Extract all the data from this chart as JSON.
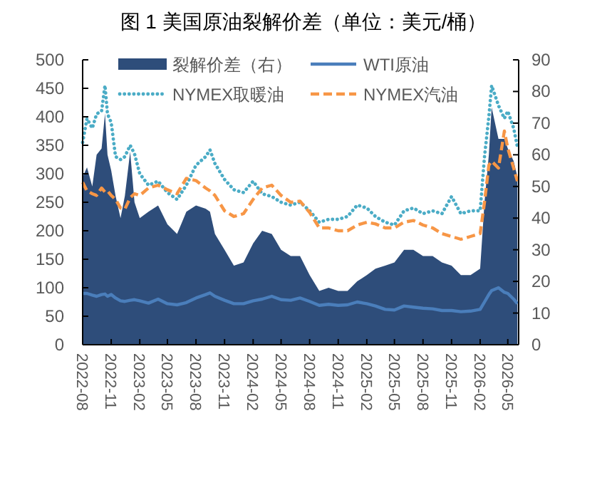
{
  "chart_data": {
    "type": "line",
    "title": "图 1 美国原油裂解价差（单位：美元/桶）",
    "legend": "top",
    "x": [
      "2022-08-01",
      "2022-08-15",
      "2022-09-01",
      "2022-09-15",
      "2022-10-01",
      "2022-10-12",
      "2022-10-20",
      "2022-11-01",
      "2022-11-15",
      "2022-12-01",
      "2022-12-15",
      "2023-01-01",
      "2023-01-15",
      "2023-02-01",
      "2023-03-01",
      "2023-04-01",
      "2023-05-01",
      "2023-06-01",
      "2023-07-01",
      "2023-08-01",
      "2023-09-01",
      "2023-09-15",
      "2023-10-01",
      "2023-11-01",
      "2023-12-01",
      "2024-01-01",
      "2024-02-01",
      "2024-03-01",
      "2024-04-01",
      "2024-05-01",
      "2024-06-01",
      "2024-07-01",
      "2024-08-01",
      "2024-09-01",
      "2024-10-01",
      "2024-11-01",
      "2024-12-01",
      "2025-01-01",
      "2025-02-01",
      "2025-03-01",
      "2025-04-01",
      "2025-05-01",
      "2025-06-01",
      "2025-07-01",
      "2025-08-01",
      "2025-09-01",
      "2025-10-01",
      "2025-11-01",
      "2025-12-01",
      "2026-01-01",
      "2026-02-01",
      "2026-02-15",
      "2026-03-01",
      "2026-03-10",
      "2026-04-01",
      "2026-04-20",
      "2026-05-01",
      "2026-05-20",
      "2026-06-01"
    ],
    "series": [
      {
        "name": "裂解价差（右）",
        "type": "area",
        "axis": "y2",
        "color": "#2e4d7a",
        "values": [
          53,
          56,
          50,
          60,
          62,
          73,
          60,
          55,
          47,
          40,
          47,
          61,
          45,
          40,
          42,
          44,
          38,
          35,
          42,
          44,
          43,
          42,
          35,
          30,
          25,
          26,
          32,
          36,
          35,
          30,
          28,
          28,
          22,
          17,
          18,
          17,
          17,
          20,
          22,
          24,
          25,
          26,
          30,
          30,
          28,
          28,
          26,
          25,
          22,
          22,
          24,
          45,
          60,
          75,
          65,
          65,
          62,
          58,
          53
        ]
      },
      {
        "name": "WTI原油",
        "line_style": "solid",
        "color": "#4a7ebb",
        "values": [
          90,
          90,
          87,
          85,
          88,
          89,
          85,
          88,
          82,
          77,
          76,
          78,
          79,
          77,
          73,
          80,
          72,
          70,
          74,
          82,
          88,
          91,
          85,
          78,
          72,
          72,
          77,
          80,
          85,
          79,
          78,
          82,
          76,
          69,
          71,
          69,
          70,
          75,
          72,
          68,
          62,
          61,
          68,
          66,
          64,
          63,
          60,
          60,
          58,
          59,
          62,
          75,
          88,
          95,
          100,
          92,
          90,
          80,
          72
        ]
      },
      {
        "name": "NYMEX取暖油",
        "line_style": "dotted",
        "color": "#4bacc6",
        "values": [
          355,
          397,
          380,
          405,
          410,
          455,
          405,
          390,
          330,
          325,
          330,
          350,
          335,
          300,
          280,
          287,
          267,
          255,
          280,
          315,
          330,
          342,
          318,
          290,
          272,
          267,
          287,
          265,
          260,
          250,
          245,
          250,
          235,
          215,
          220,
          220,
          225,
          245,
          240,
          225,
          215,
          210,
          235,
          240,
          230,
          235,
          230,
          260,
          230,
          235,
          235,
          330,
          400,
          455,
          420,
          397,
          410,
          380,
          347
        ]
      },
      {
        "name": "NYMEX汽油",
        "line_style": "dashed",
        "color": "#f79646",
        "values": [
          285,
          270,
          265,
          262,
          275,
          268,
          270,
          262,
          255,
          240,
          238,
          258,
          265,
          262,
          275,
          280,
          272,
          265,
          292,
          288,
          275,
          270,
          262,
          235,
          225,
          230,
          255,
          275,
          280,
          262,
          250,
          252,
          232,
          205,
          205,
          200,
          200,
          210,
          215,
          212,
          205,
          205,
          215,
          218,
          210,
          205,
          195,
          190,
          185,
          190,
          195,
          250,
          315,
          322,
          310,
          375,
          345,
          310,
          287
        ]
      }
    ],
    "xlim": [
      "2022-08-01",
      "2026-06-05"
    ],
    "xticks": [
      "2022-08",
      "2022-11",
      "2023-02",
      "2023-05",
      "2023-08",
      "2023-11",
      "2024-02",
      "2024-05",
      "2024-08",
      "2024-11",
      "2025-02",
      "2025-05",
      "2025-08",
      "2025-11",
      "2026-02",
      "2026-05"
    ],
    "ylim": [
      0,
      500
    ],
    "yticks": [
      0,
      50,
      100,
      150,
      200,
      250,
      300,
      350,
      400,
      450,
      500
    ],
    "y2lim": [
      0,
      90
    ],
    "y2ticks": [
      0,
      10,
      20,
      30,
      40,
      50,
      60,
      70,
      80,
      90
    ]
  }
}
